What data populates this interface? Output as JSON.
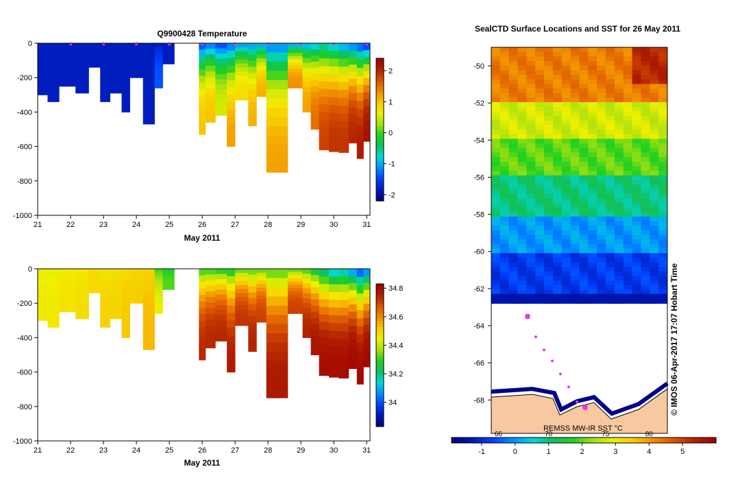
{
  "chart_data": [
    {
      "type": "heatmap",
      "title": "Q9900428  Temperature",
      "xlabel": "May 2011",
      "x_ticks": [
        "21",
        "22",
        "23",
        "24",
        "25",
        "26",
        "27",
        "28",
        "29",
        "30",
        "31"
      ],
      "xlim": [
        21,
        31.1
      ],
      "ylim": [
        -1000,
        0
      ],
      "y_ticks": [
        "0",
        "-200",
        "-400",
        "-600",
        "-800",
        "-1000"
      ],
      "colorbar": {
        "min": -2.2,
        "max": 2.4,
        "ticks": [
          "2",
          "1",
          "0",
          "-1",
          "-2"
        ],
        "tick_values": [
          2,
          1,
          0,
          -1,
          -2
        ]
      },
      "profiles": [
        {
          "day": 21.0,
          "depth": 300,
          "surface": -1.8,
          "deep": -1.8
        },
        {
          "day": 21.3,
          "depth": 340,
          "surface": -1.8,
          "deep": -1.8
        },
        {
          "day": 21.65,
          "depth": 250,
          "surface": -1.8,
          "deep": -1.8
        },
        {
          "day": 22.15,
          "depth": 290,
          "surface": -1.8,
          "deep": -1.8
        },
        {
          "day": 22.55,
          "depth": 140,
          "surface": -1.8,
          "deep": -1.8
        },
        {
          "day": 22.9,
          "depth": 340,
          "surface": -1.8,
          "deep": -1.8
        },
        {
          "day": 23.2,
          "depth": 290,
          "surface": -1.8,
          "deep": -1.8
        },
        {
          "day": 23.55,
          "depth": 400,
          "surface": -1.8,
          "deep": -1.8
        },
        {
          "day": 23.8,
          "depth": 200,
          "surface": -1.8,
          "deep": -1.8
        },
        {
          "day": 24.2,
          "depth": 470,
          "surface": -1.8,
          "deep": -1.8
        },
        {
          "day": 24.55,
          "depth": 260,
          "surface": -1.8,
          "deep": -1.4
        },
        {
          "day": 24.8,
          "depth": 120,
          "surface": -1.8,
          "deep": -1.8
        },
        {
          "day": 25.9,
          "depth": 530,
          "surface": -1.6,
          "deep": 1.0
        },
        {
          "day": 26.1,
          "depth": 460,
          "surface": -1.4,
          "deep": 1.0
        },
        {
          "day": 26.4,
          "depth": 420,
          "surface": -1.6,
          "deep": 0.5
        },
        {
          "day": 26.75,
          "depth": 600,
          "surface": -1.4,
          "deep": 1.2
        },
        {
          "day": 27.0,
          "depth": 330,
          "surface": -1.2,
          "deep": 0.8
        },
        {
          "day": 27.4,
          "depth": 480,
          "surface": -1.2,
          "deep": 1.1
        },
        {
          "day": 27.65,
          "depth": 310,
          "surface": -1.2,
          "deep": 1.1
        },
        {
          "day": 27.95,
          "depth": 750,
          "surface": -1.3,
          "deep": 1.2
        },
        {
          "day": 28.3,
          "depth": 750,
          "surface": -1.3,
          "deep": 1.2
        },
        {
          "day": 28.6,
          "depth": 260,
          "surface": -1.2,
          "deep": 1.3
        },
        {
          "day": 29.05,
          "depth": 400,
          "surface": -1.1,
          "deep": 1.2
        },
        {
          "day": 29.3,
          "depth": 500,
          "surface": -1.0,
          "deep": 1.5
        },
        {
          "day": 29.55,
          "depth": 620,
          "surface": -0.8,
          "deep": 1.8
        },
        {
          "day": 29.85,
          "depth": 630,
          "surface": -1.0,
          "deep": 1.9
        },
        {
          "day": 30.15,
          "depth": 635,
          "surface": -1.2,
          "deep": 1.9
        },
        {
          "day": 30.45,
          "depth": 580,
          "surface": -1.4,
          "deep": 2.0
        },
        {
          "day": 30.7,
          "depth": 670,
          "surface": -1.6,
          "deep": 2.1
        },
        {
          "day": 30.9,
          "depth": 570,
          "surface": -1.8,
          "deep": 2.2
        }
      ],
      "marker_days": [
        22,
        23,
        24,
        25,
        26,
        27,
        28,
        29,
        30,
        31
      ]
    },
    {
      "type": "heatmap",
      "title": "",
      "xlabel": "May 2011",
      "x_ticks": [
        "21",
        "22",
        "23",
        "24",
        "25",
        "26",
        "27",
        "28",
        "29",
        "30",
        "31"
      ],
      "xlim": [
        21,
        31.1
      ],
      "ylim": [
        -1000,
        0
      ],
      "y_ticks": [
        "0",
        "-200",
        "-400",
        "-600",
        "-800",
        "-1000"
      ],
      "colorbar": {
        "min": 33.83,
        "max": 34.83,
        "ticks": [
          "34.8",
          "34.6",
          "34.4",
          "34.2",
          "34"
        ],
        "tick_values": [
          34.8,
          34.6,
          34.4,
          34.2,
          34.0
        ]
      },
      "profiles": [
        {
          "day": 21.0,
          "depth": 300,
          "surface": 34.43,
          "deep": 34.46
        },
        {
          "day": 21.3,
          "depth": 340,
          "surface": 34.43,
          "deep": 34.46
        },
        {
          "day": 21.65,
          "depth": 250,
          "surface": 34.45,
          "deep": 34.47
        },
        {
          "day": 22.15,
          "depth": 290,
          "surface": 34.46,
          "deep": 34.48
        },
        {
          "day": 22.55,
          "depth": 140,
          "surface": 34.48,
          "deep": 34.49
        },
        {
          "day": 22.9,
          "depth": 340,
          "surface": 34.47,
          "deep": 34.5
        },
        {
          "day": 23.2,
          "depth": 290,
          "surface": 34.47,
          "deep": 34.5
        },
        {
          "day": 23.55,
          "depth": 400,
          "surface": 34.48,
          "deep": 34.52
        },
        {
          "day": 23.8,
          "depth": 200,
          "surface": 34.49,
          "deep": 34.51
        },
        {
          "day": 24.2,
          "depth": 470,
          "surface": 34.5,
          "deep": 34.54
        },
        {
          "day": 24.55,
          "depth": 260,
          "surface": 34.3,
          "deep": 34.44
        },
        {
          "day": 24.8,
          "depth": 120,
          "surface": 34.28,
          "deep": 34.32
        },
        {
          "day": 25.9,
          "depth": 530,
          "surface": 34.28,
          "deep": 34.74
        },
        {
          "day": 26.1,
          "depth": 460,
          "surface": 34.28,
          "deep": 34.74
        },
        {
          "day": 26.4,
          "depth": 420,
          "surface": 34.26,
          "deep": 34.74
        },
        {
          "day": 26.75,
          "depth": 600,
          "surface": 34.25,
          "deep": 34.76
        },
        {
          "day": 27.0,
          "depth": 330,
          "surface": 34.3,
          "deep": 34.72
        },
        {
          "day": 27.4,
          "depth": 480,
          "surface": 34.3,
          "deep": 34.75
        },
        {
          "day": 27.65,
          "depth": 310,
          "surface": 34.3,
          "deep": 34.7
        },
        {
          "day": 27.95,
          "depth": 750,
          "surface": 34.3,
          "deep": 34.77
        },
        {
          "day": 28.3,
          "depth": 750,
          "surface": 34.3,
          "deep": 34.77
        },
        {
          "day": 28.6,
          "depth": 260,
          "surface": 34.3,
          "deep": 34.7
        },
        {
          "day": 29.05,
          "depth": 400,
          "surface": 34.28,
          "deep": 34.75
        },
        {
          "day": 29.3,
          "depth": 500,
          "surface": 34.22,
          "deep": 34.78
        },
        {
          "day": 29.55,
          "depth": 620,
          "surface": 34.15,
          "deep": 34.8
        },
        {
          "day": 29.85,
          "depth": 630,
          "surface": 34.08,
          "deep": 34.8
        },
        {
          "day": 30.15,
          "depth": 635,
          "surface": 34.1,
          "deep": 34.8
        },
        {
          "day": 30.45,
          "depth": 580,
          "surface": 34.02,
          "deep": 34.81
        },
        {
          "day": 30.7,
          "depth": 670,
          "surface": 33.95,
          "deep": 34.81
        },
        {
          "day": 30.9,
          "depth": 570,
          "surface": 34.0,
          "deep": 34.81
        }
      ]
    },
    {
      "type": "heatmap",
      "title": "SealCTD Surface Locations and SST for 26 May 2011",
      "ylim": [
        -69.8,
        -49
      ],
      "y_ticks": [
        "-50",
        "-52",
        "-54",
        "-56",
        "-58",
        "-60",
        "-62",
        "-64",
        "-66",
        "-68"
      ],
      "y_tick_values": [
        -50,
        -52,
        -54,
        -56,
        -58,
        -60,
        -62,
        -64,
        -66,
        -68
      ],
      "ice_edge_lat": -62.8,
      "sst_bands": [
        {
          "lat_from": -49,
          "lat_to": -52,
          "sst": 4.3
        },
        {
          "lat_from": -52,
          "lat_to": -54,
          "sst": 2.7
        },
        {
          "lat_from": -54,
          "lat_to": -56,
          "sst": 2.0
        },
        {
          "lat_from": -56,
          "lat_to": -58,
          "sst": 1.0
        },
        {
          "lat_from": -58,
          "lat_to": -60,
          "sst": 0.0
        },
        {
          "lat_from": -60,
          "lat_to": -62.8,
          "sst": -0.8
        }
      ],
      "colorbar": {
        "label": "REMSS MW-IR SST °C",
        "min": -1.9,
        "max": 6.0,
        "ticks": [
          "-1",
          "0",
          "1",
          "2",
          "3",
          "4",
          "5"
        ],
        "tick_values": [
          -1,
          0,
          1,
          2,
          3,
          4,
          5
        ],
        "secondary_ticks": [
          "66",
          "70",
          "75",
          "80"
        ],
        "secondary_values": [
          -0.5,
          1.0,
          2.7,
          4.0
        ]
      },
      "track_lats": [
        -63.5,
        -64.6,
        -65.3,
        -65.9,
        -66.6,
        -67.3,
        -68.1,
        -68.4
      ],
      "side_text": "© IMOS 06-Apr-2017 17:07 Hobart Time"
    }
  ],
  "palette": {
    "stops": [
      "#000080",
      "#0018b4",
      "#0040ff",
      "#0090ff",
      "#00d8d8",
      "#10c060",
      "#20d020",
      "#a8e010",
      "#f0f000",
      "#f8c800",
      "#f08800",
      "#d85000",
      "#b02000",
      "#a00000"
    ],
    "marker": "#e040e0",
    "land": "#f8c8a0",
    "axis": "#000000"
  }
}
